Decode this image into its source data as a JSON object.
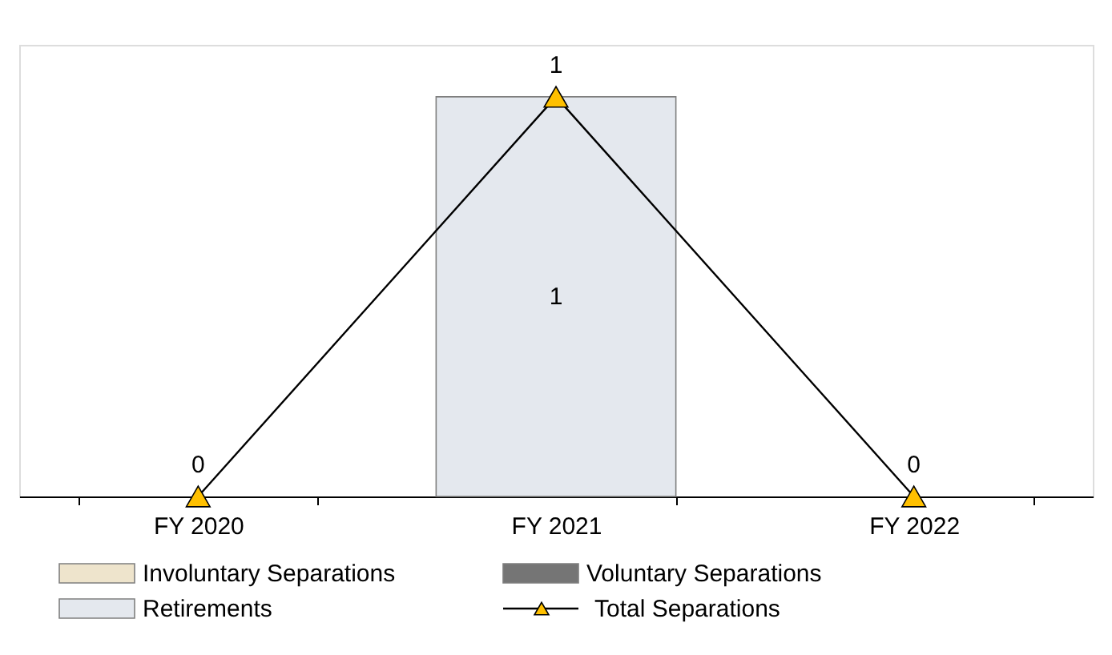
{
  "chart_data": {
    "type": "bar",
    "ylim": [
      0,
      1.13
    ],
    "categories": [
      "FY 2020",
      "FY 2021",
      "FY 2022"
    ],
    "series": [
      {
        "name": "Involuntary Separations",
        "color": "#eee4cc",
        "values": [
          null,
          null,
          null
        ]
      },
      {
        "name": "Voluntary Separations",
        "color": "#757575",
        "values": [
          null,
          null,
          null
        ]
      },
      {
        "name": "Retirements",
        "color": "#e4e8ee",
        "values": [
          null,
          1,
          null
        ],
        "value_labels": [
          null,
          "1",
          null
        ]
      },
      {
        "name": "Total Separations",
        "type": "line",
        "color": "#000000",
        "marker": "triangle",
        "values": [
          0,
          1,
          0
        ],
        "value_labels": [
          "0",
          "1",
          "0"
        ]
      }
    ],
    "legend": "bottom",
    "grid": false,
    "tick_labels": "x"
  }
}
